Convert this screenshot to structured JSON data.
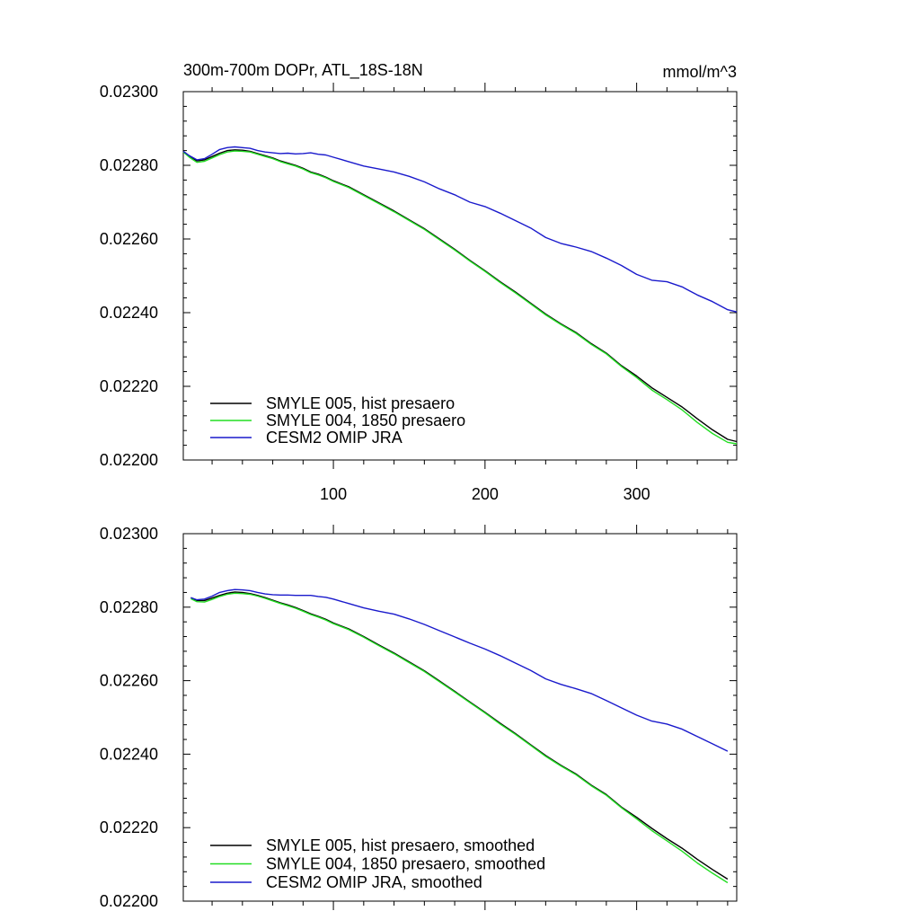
{
  "chart_data": [
    {
      "type": "line",
      "title": "300m-700m DOPr, ATL_18S-18N",
      "units": "mmol/m^3",
      "xlim": [
        1,
        366
      ],
      "ylim": [
        0.022,
        0.023
      ],
      "yticks": [
        "0.02200",
        "0.02220",
        "0.02240",
        "0.02260",
        "0.02280",
        "0.02300"
      ],
      "xticks": [
        "100",
        "200",
        "300"
      ],
      "legend_position": "bottom-left",
      "series": [
        {
          "name": "SMYLE 005, hist presaero",
          "color": "#000000",
          "x": [
            1,
            5,
            10,
            15,
            20,
            25,
            30,
            35,
            40,
            45,
            50,
            55,
            60,
            65,
            70,
            75,
            80,
            85,
            90,
            95,
            100,
            110,
            120,
            130,
            140,
            150,
            160,
            170,
            180,
            190,
            200,
            210,
            220,
            230,
            240,
            250,
            260,
            270,
            280,
            290,
            300,
            310,
            320,
            330,
            340,
            350,
            360,
            366
          ],
          "y": [
            0.022838,
            0.022825,
            0.022812,
            0.022815,
            0.022824,
            0.022833,
            0.02284,
            0.022842,
            0.022841,
            0.022838,
            0.022832,
            0.022826,
            0.02282,
            0.022812,
            0.022806,
            0.0228,
            0.022792,
            0.022782,
            0.022776,
            0.022768,
            0.022758,
            0.022742,
            0.02272,
            0.022698,
            0.022676,
            0.022652,
            0.022628,
            0.0226,
            0.022572,
            0.022542,
            0.022514,
            0.022484,
            0.022456,
            0.022426,
            0.022396,
            0.02237,
            0.022346,
            0.022316,
            0.02229,
            0.022256,
            0.022228,
            0.022196,
            0.02217,
            0.022144,
            0.022112,
            0.022082,
            0.022056,
            0.02205
          ]
        },
        {
          "name": "SMYLE 004, 1850 presaero",
          "color": "#22dd22",
          "x": [
            1,
            5,
            10,
            15,
            20,
            25,
            30,
            35,
            40,
            45,
            50,
            55,
            60,
            65,
            70,
            75,
            80,
            85,
            90,
            95,
            100,
            110,
            120,
            130,
            140,
            150,
            160,
            170,
            180,
            190,
            200,
            210,
            220,
            230,
            240,
            250,
            260,
            270,
            280,
            290,
            300,
            310,
            320,
            330,
            340,
            350,
            360,
            366
          ],
          "y": [
            0.022836,
            0.022822,
            0.022808,
            0.022811,
            0.02282,
            0.022829,
            0.022836,
            0.022839,
            0.022838,
            0.022836,
            0.02283,
            0.022824,
            0.022818,
            0.02281,
            0.022804,
            0.022798,
            0.02279,
            0.02278,
            0.022774,
            0.022766,
            0.022756,
            0.02274,
            0.022718,
            0.022696,
            0.022674,
            0.02265,
            0.022626,
            0.022598,
            0.02257,
            0.02254,
            0.022512,
            0.022482,
            0.022454,
            0.022424,
            0.022394,
            0.022368,
            0.022344,
            0.022314,
            0.022288,
            0.022254,
            0.022224,
            0.02219,
            0.022164,
            0.022136,
            0.022102,
            0.022072,
            0.022048,
            0.022044
          ]
        },
        {
          "name": "CESM2 OMIP JRA",
          "color": "#1a1acc",
          "x": [
            1,
            5,
            10,
            15,
            20,
            25,
            30,
            35,
            40,
            45,
            50,
            55,
            60,
            65,
            70,
            75,
            80,
            85,
            90,
            95,
            100,
            110,
            120,
            130,
            140,
            150,
            160,
            170,
            180,
            190,
            200,
            210,
            220,
            230,
            240,
            250,
            260,
            270,
            280,
            290,
            300,
            310,
            320,
            330,
            340,
            350,
            360,
            366
          ],
          "y": [
            0.022838,
            0.022826,
            0.022815,
            0.022818,
            0.02283,
            0.022843,
            0.022848,
            0.02285,
            0.022848,
            0.022846,
            0.02284,
            0.022836,
            0.022834,
            0.022832,
            0.022833,
            0.022831,
            0.022832,
            0.022834,
            0.02283,
            0.022828,
            0.022822,
            0.02281,
            0.022798,
            0.02279,
            0.022782,
            0.02277,
            0.022755,
            0.022736,
            0.02272,
            0.0227,
            0.022688,
            0.02267,
            0.02265,
            0.02263,
            0.022604,
            0.022588,
            0.022578,
            0.022566,
            0.022548,
            0.022528,
            0.022504,
            0.022488,
            0.022484,
            0.02247,
            0.022448,
            0.02243,
            0.022408,
            0.022402
          ]
        }
      ]
    },
    {
      "type": "line",
      "title": "",
      "xlim": [
        1,
        366
      ],
      "ylim": [
        0.022,
        0.023
      ],
      "yticks": [
        "0.02200",
        "0.02220",
        "0.02240",
        "0.02260",
        "0.02280",
        "0.02300"
      ],
      "legend_position": "bottom-left",
      "series": [
        {
          "name": "SMYLE 005, hist presaero, smoothed",
          "color": "#000000",
          "x": [
            6,
            10,
            15,
            20,
            25,
            30,
            35,
            40,
            45,
            50,
            55,
            60,
            65,
            70,
            75,
            80,
            85,
            90,
            95,
            100,
            110,
            120,
            130,
            140,
            150,
            160,
            170,
            180,
            190,
            200,
            210,
            220,
            230,
            240,
            250,
            260,
            270,
            280,
            290,
            300,
            310,
            320,
            330,
            340,
            350,
            360
          ],
          "y": [
            0.022826,
            0.022818,
            0.022818,
            0.022825,
            0.022832,
            0.022838,
            0.022841,
            0.02284,
            0.022837,
            0.022832,
            0.022826,
            0.022819,
            0.022812,
            0.022806,
            0.022799,
            0.022791,
            0.022782,
            0.022775,
            0.022767,
            0.022757,
            0.022741,
            0.02272,
            0.022697,
            0.022675,
            0.022651,
            0.022627,
            0.022599,
            0.022571,
            0.022542,
            0.022514,
            0.022484,
            0.022456,
            0.022426,
            0.022396,
            0.02237,
            0.022346,
            0.022316,
            0.02229,
            0.022256,
            0.022228,
            0.022198,
            0.02217,
            0.022144,
            0.022114,
            0.022086,
            0.02206
          ]
        },
        {
          "name": "SMYLE 004, 1850 presaero, smoothed",
          "color": "#22dd22",
          "x": [
            6,
            10,
            15,
            20,
            25,
            30,
            35,
            40,
            45,
            50,
            55,
            60,
            65,
            70,
            75,
            80,
            85,
            90,
            95,
            100,
            110,
            120,
            130,
            140,
            150,
            160,
            170,
            180,
            190,
            200,
            210,
            220,
            230,
            240,
            250,
            260,
            270,
            280,
            290,
            300,
            310,
            320,
            330,
            340,
            350,
            360
          ],
          "y": [
            0.022823,
            0.022815,
            0.022814,
            0.022821,
            0.022829,
            0.022835,
            0.022838,
            0.022837,
            0.022835,
            0.02283,
            0.022824,
            0.022817,
            0.02281,
            0.022804,
            0.022797,
            0.022789,
            0.02278,
            0.022773,
            0.022765,
            0.022755,
            0.022739,
            0.022718,
            0.022695,
            0.022673,
            0.022649,
            0.022625,
            0.022597,
            0.022569,
            0.02254,
            0.022512,
            0.022482,
            0.022454,
            0.022424,
            0.022394,
            0.022368,
            0.022344,
            0.022314,
            0.022288,
            0.022254,
            0.022224,
            0.022192,
            0.022164,
            0.022136,
            0.022104,
            0.022076,
            0.02205
          ]
        },
        {
          "name": "CESM2 OMIP JRA, smoothed",
          "color": "#1a1acc",
          "x": [
            6,
            10,
            15,
            20,
            25,
            30,
            35,
            40,
            45,
            50,
            55,
            60,
            65,
            70,
            75,
            80,
            85,
            90,
            95,
            100,
            110,
            120,
            130,
            140,
            150,
            160,
            170,
            180,
            190,
            200,
            210,
            220,
            230,
            240,
            250,
            260,
            270,
            280,
            290,
            300,
            310,
            320,
            330,
            340,
            350,
            360
          ],
          "y": [
            0.022826,
            0.02282,
            0.022822,
            0.02283,
            0.02284,
            0.022845,
            0.022848,
            0.022847,
            0.022845,
            0.02284,
            0.022836,
            0.022834,
            0.022833,
            0.022833,
            0.022832,
            0.022832,
            0.022832,
            0.022829,
            0.022827,
            0.022822,
            0.02281,
            0.022798,
            0.022789,
            0.022781,
            0.022768,
            0.022753,
            0.022736,
            0.022719,
            0.022702,
            0.022686,
            0.022668,
            0.022648,
            0.022628,
            0.022605,
            0.02259,
            0.022578,
            0.022565,
            0.022546,
            0.022526,
            0.022506,
            0.02249,
            0.022482,
            0.022468,
            0.022448,
            0.022428,
            0.022408
          ]
        }
      ]
    }
  ]
}
